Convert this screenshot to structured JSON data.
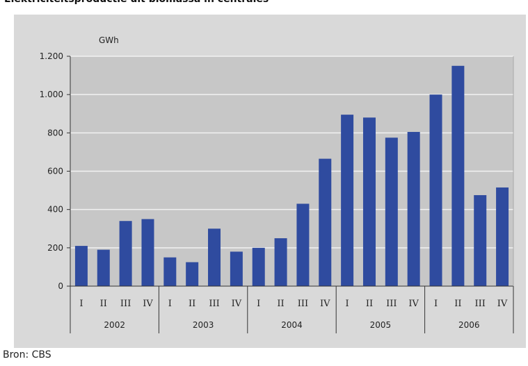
{
  "header": {
    "title": "Elektriciteitsproductie uit biomassa in centrales"
  },
  "footer": {
    "source": "Bron: CBS"
  },
  "chart_data": {
    "type": "bar",
    "title": "Elektriciteitsproductie uit biomassa in centrales",
    "ylabel": "GWh",
    "xlabel": "",
    "ylim": [
      0,
      1200
    ],
    "yticks": [
      0,
      200,
      400,
      600,
      800,
      1000,
      1200
    ],
    "ytick_labels": [
      "0",
      "200",
      "400",
      "600",
      "800",
      "1.000",
      "1.200"
    ],
    "grid": true,
    "bar_color": "#2f4b9f",
    "years": [
      "2002",
      "2003",
      "2004",
      "2005",
      "2006"
    ],
    "quarters": [
      "I",
      "II",
      "III",
      "IV"
    ],
    "categories": [
      "2002 I",
      "2002 II",
      "2002 III",
      "2002 IV",
      "2003 I",
      "2003 II",
      "2003 III",
      "2003 IV",
      "2004 I",
      "2004 II",
      "2004 III",
      "2004 IV",
      "2005 I",
      "2005 II",
      "2005 III",
      "2005 IV",
      "2006 I",
      "2006 II",
      "2006 III",
      "2006 IV"
    ],
    "values": [
      210,
      190,
      340,
      350,
      150,
      125,
      300,
      180,
      200,
      250,
      430,
      665,
      895,
      880,
      775,
      805,
      1000,
      1150,
      475,
      515
    ]
  }
}
